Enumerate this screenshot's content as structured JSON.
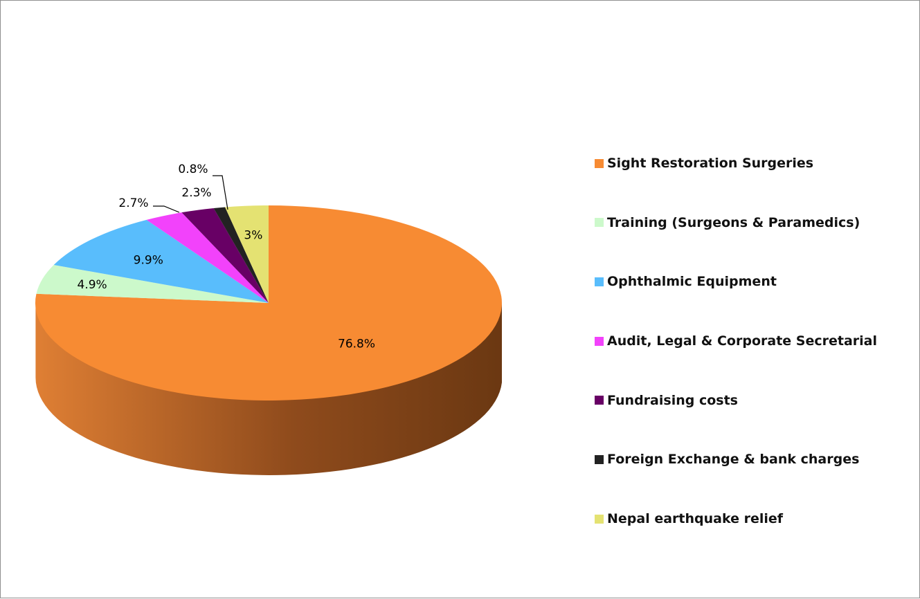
{
  "chart_data": {
    "type": "pie",
    "title": "",
    "legend_position": "right",
    "slices": [
      {
        "label": "Sight Restoration Surgeries",
        "value": 76.8,
        "value_label": "76.8%",
        "color": "#f78b33",
        "side_dark": "#6b3812",
        "side_light": "#df7f34"
      },
      {
        "label": "Training (Surgeons & Paramedics)",
        "value": 4.9,
        "value_label": "4.9%",
        "color": "#ccf9cb",
        "side_dark": "#6a866a",
        "side_light": "#b5dcb4"
      },
      {
        "label": "Ophthalmic Equipment",
        "value": 9.9,
        "value_label": "9.9%",
        "color": "#59bdfc",
        "side_dark": "#1d5a82",
        "side_light": "#4ea3da"
      },
      {
        "label": "Audit, Legal & Corporate Secretarial",
        "value": 2.7,
        "value_label": "2.7%",
        "color": "#f242fb",
        "side_dark": "#6e1a73",
        "side_light": "#cc3bd4"
      },
      {
        "label": "Fundraising costs",
        "value": 2.3,
        "value_label": "2.3%",
        "color": "#680065",
        "side_dark": "#300030",
        "side_light": "#540052"
      },
      {
        "label": "Foreign Exchange & bank charges",
        "value": 0.8,
        "value_label": "0.8%",
        "color": "#222222",
        "side_dark": "#111111",
        "side_light": "#1a1a1a"
      },
      {
        "label": "Nepal earthquake relief",
        "value": 3.0,
        "value_label": "3%",
        "color": "#e4e272",
        "side_dark": "#6b6a30",
        "side_light": "#c7c55e"
      }
    ]
  }
}
